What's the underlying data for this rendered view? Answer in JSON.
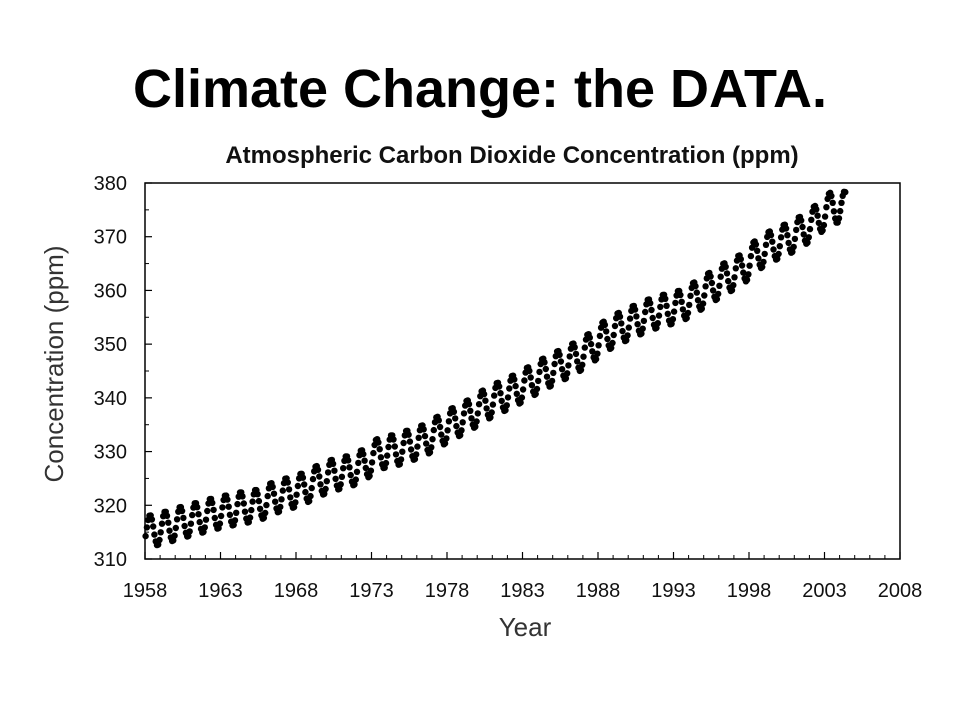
{
  "slide": {
    "title": "Climate Change: the DATA."
  },
  "chart_data": {
    "type": "scatter",
    "title": "Atmospheric Carbon Dioxide Concentration (ppm)",
    "xlabel": "Year",
    "ylabel": "Concentration (ppm)",
    "xlim": [
      1958,
      2008
    ],
    "ylim": [
      310,
      380
    ],
    "x_ticks": [
      "1958",
      "1963",
      "1968",
      "1973",
      "1978",
      "1983",
      "1988",
      "1993",
      "1998",
      "2003",
      "2008"
    ],
    "y_ticks": [
      "310",
      "320",
      "330",
      "340",
      "350",
      "360",
      "370",
      "380"
    ],
    "grid": false,
    "marker_color": "#000000",
    "series": [
      {
        "x": [
          1958.5,
          1959.5,
          1960.5,
          1961.5,
          1962.5,
          1963.5,
          1964.5,
          1965.5,
          1966.5,
          1967.5,
          1968.5,
          1969.5,
          1970.5,
          1971.5,
          1972.5,
          1973.5,
          1974.5,
          1975.5,
          1976.5,
          1977.5,
          1978.5,
          1979.5,
          1980.5,
          1981.5,
          1982.5,
          1983.5,
          1984.5,
          1985.5,
          1986.5,
          1987.5,
          1988.5,
          1989.5,
          1990.5,
          1991.5,
          1992.5,
          1993.5,
          1994.5,
          1995.5,
          1996.5,
          1997.5,
          1998.5,
          1999.5,
          2000.5,
          2001.5,
          2002.5,
          2003.5,
          2004.0
        ],
        "y": [
          315.3,
          316.0,
          316.9,
          317.6,
          318.4,
          319.0,
          319.6,
          320.0,
          321.4,
          322.2,
          323.1,
          324.6,
          325.7,
          326.3,
          327.5,
          329.7,
          330.2,
          331.1,
          332.1,
          333.8,
          335.4,
          336.8,
          338.7,
          340.1,
          341.4,
          343.0,
          344.6,
          346.0,
          347.4,
          349.2,
          351.6,
          353.1,
          354.4,
          355.6,
          356.4,
          357.1,
          358.8,
          360.6,
          362.4,
          363.8,
          366.6,
          368.3,
          369.5,
          371.0,
          373.1,
          375.6,
          375.5
        ],
        "seasonal_amplitude_ppm": 3
      }
    ]
  }
}
